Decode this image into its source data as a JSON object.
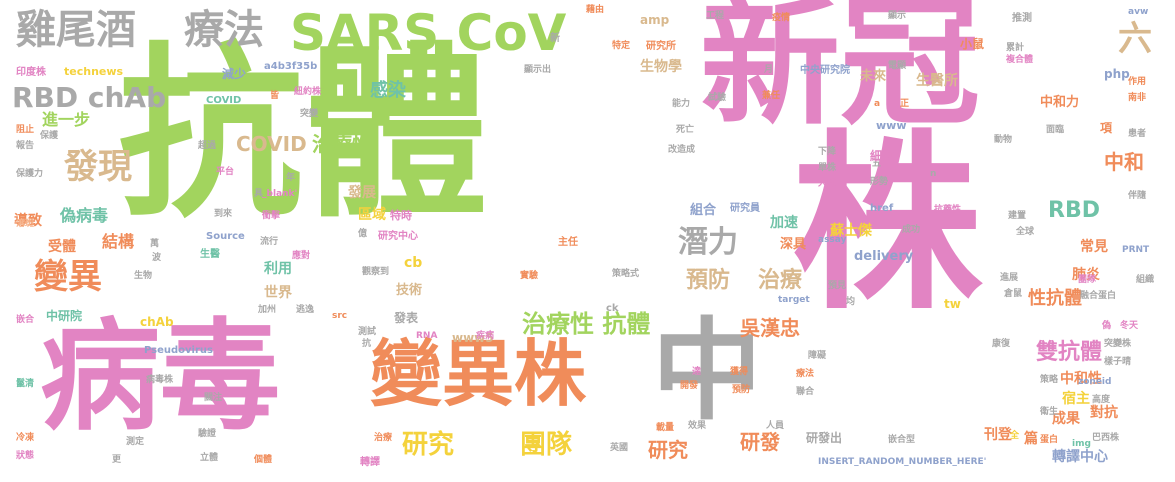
{
  "colors": {
    "green": "#a2d45e",
    "pink": "#e284c3",
    "orange": "#f08c5a",
    "gray": "#a9a9a9",
    "tan": "#d9b98e",
    "yellow": "#f4d23c",
    "teal": "#6fc2a7",
    "blue": "#8fa2cc",
    "lightorange": "#f6b48c"
  },
  "words": [
    {
      "text": "抗體",
      "size": 185,
      "color": "green"
    },
    {
      "text": "新冠",
      "size": 140,
      "color": "pink"
    },
    {
      "text": "株",
      "size": 190,
      "color": "pink"
    },
    {
      "text": "病毒",
      "size": 120,
      "color": "pink"
    },
    {
      "text": "中",
      "size": 110,
      "color": "gray"
    },
    {
      "text": "變異株",
      "size": 72,
      "color": "orange"
    },
    {
      "text": "SARS CoV",
      "size": 50,
      "color": "green"
    },
    {
      "text": "雞尾酒",
      "size": 40,
      "color": "gray"
    },
    {
      "text": "療法",
      "size": 40,
      "color": "gray"
    },
    {
      "text": "六",
      "size": 34,
      "color": "tan"
    },
    {
      "text": "RBD chAb",
      "size": 28,
      "color": "gray"
    },
    {
      "text": "發現",
      "size": 34,
      "color": "tan"
    },
    {
      "text": "變異",
      "size": 34,
      "color": "orange"
    },
    {
      "text": "潛力",
      "size": 30,
      "color": "gray"
    },
    {
      "text": "治療性 抗體",
      "size": 24,
      "color": "green"
    },
    {
      "text": "研究",
      "size": 26,
      "color": "yellow"
    },
    {
      "text": "團隊",
      "size": 26,
      "color": "yellow"
    },
    {
      "text": "吳漢忠",
      "size": 20,
      "color": "orange"
    },
    {
      "text": "雙抗體",
      "size": 22,
      "color": "pink"
    },
    {
      "text": "治療性",
      "size": 20,
      "color": "green"
    },
    {
      "text": "COVID",
      "size": 20,
      "color": "tan"
    },
    {
      "text": "預防",
      "size": 22,
      "color": "tan"
    },
    {
      "text": "治療",
      "size": 22,
      "color": "tan"
    },
    {
      "text": "RBD",
      "size": 22,
      "color": "teal"
    },
    {
      "text": "中和",
      "size": 20,
      "color": "orange"
    },
    {
      "text": "研究",
      "size": 20,
      "color": "orange"
    },
    {
      "text": "研發",
      "size": 20,
      "color": "orange"
    },
    {
      "text": "感染",
      "size": 18,
      "color": "teal"
    },
    {
      "text": "進一步",
      "size": 16,
      "color": "green"
    },
    {
      "text": "偽病毒",
      "size": 16,
      "color": "teal"
    },
    {
      "text": "結構",
      "size": 16,
      "color": "orange"
    },
    {
      "text": "受體",
      "size": 14,
      "color": "orange"
    },
    {
      "text": "導致",
      "size": 14,
      "color": "orange"
    },
    {
      "text": "發展",
      "size": 14,
      "color": "tan"
    },
    {
      "text": "區域",
      "size": 14,
      "color": "yellow"
    },
    {
      "text": "特時",
      "size": 11,
      "color": "pink"
    },
    {
      "text": "利用",
      "size": 14,
      "color": "teal"
    },
    {
      "text": "世界",
      "size": 14,
      "color": "tan"
    },
    {
      "text": "技術",
      "size": 13,
      "color": "tan"
    },
    {
      "text": "cb",
      "size": 14,
      "color": "yellow"
    },
    {
      "text": "加速",
      "size": 14,
      "color": "teal"
    },
    {
      "text": "組合",
      "size": 13,
      "color": "blue"
    },
    {
      "text": "研究員",
      "size": 10,
      "color": "blue"
    },
    {
      "text": "蘇士傑",
      "size": 14,
      "color": "yellow"
    },
    {
      "text": "深具",
      "size": 13,
      "color": "orange"
    },
    {
      "text": "delivery",
      "size": 13,
      "color": "blue"
    },
    {
      "text": "常見",
      "size": 14,
      "color": "orange"
    },
    {
      "text": "肺炎",
      "size": 14,
      "color": "orange"
    },
    {
      "text": "性抗體",
      "size": 18,
      "color": "orange"
    },
    {
      "text": "中和性",
      "size": 14,
      "color": "orange"
    },
    {
      "text": "宿主",
      "size": 14,
      "color": "yellow"
    },
    {
      "text": "成果",
      "size": 14,
      "color": "orange"
    },
    {
      "text": "對抗",
      "size": 14,
      "color": "orange"
    },
    {
      "text": "刊登",
      "size": 14,
      "color": "orange"
    },
    {
      "text": "篇",
      "size": 14,
      "color": "orange"
    },
    {
      "text": "轉譯中心",
      "size": 14,
      "color": "blue"
    },
    {
      "text": "研發出",
      "size": 12,
      "color": "gray"
    },
    {
      "text": "生物學",
      "size": 14,
      "color": "tan"
    },
    {
      "text": "未來",
      "size": 13,
      "color": "tan"
    },
    {
      "text": "生醫所",
      "size": 14,
      "color": "tan"
    },
    {
      "text": "中和力",
      "size": 13,
      "color": "orange"
    },
    {
      "text": "項",
      "size": 12,
      "color": "orange"
    },
    {
      "text": "小鼠",
      "size": 12,
      "color": "orange"
    },
    {
      "text": "減少",
      "size": 12,
      "color": "blue"
    },
    {
      "text": "amp",
      "size": 12,
      "color": "tan"
    },
    {
      "text": "technews",
      "size": 11,
      "color": "yellow"
    },
    {
      "text": "a4b3f35b",
      "size": 10,
      "color": "blue"
    },
    {
      "text": "php",
      "size": 12,
      "color": "blue"
    },
    {
      "text": "www",
      "size": 11,
      "color": "blue"
    },
    {
      "text": "www5",
      "size": 12,
      "color": "tan"
    },
    {
      "text": "tw",
      "size": 12,
      "color": "yellow"
    },
    {
      "text": "chAb",
      "size": 12,
      "color": "yellow"
    },
    {
      "text": "中研院",
      "size": 12,
      "color": "teal"
    },
    {
      "text": "Pseudovirus",
      "size": 10,
      "color": "blue"
    },
    {
      "text": "發表",
      "size": 12,
      "color": "gray"
    },
    {
      "text": "主任",
      "size": 10,
      "color": "orange"
    },
    {
      "text": "COVID",
      "size": 10,
      "color": "teal"
    },
    {
      "text": "Source",
      "size": 10,
      "color": "blue"
    },
    {
      "text": "生醫",
      "size": 10,
      "color": "teal"
    },
    {
      "text": "研究中心",
      "size": 10,
      "color": "pink"
    },
    {
      "text": "zoneid",
      "size": 9,
      "color": "blue"
    },
    {
      "text": "INSERT_RANDOM_NUMBER_HERE'",
      "size": 9,
      "color": "blue"
    },
    {
      "text": "_blank'",
      "size": 9,
      "color": "pink"
    },
    {
      "text": "href",
      "size": 10,
      "color": "blue"
    },
    {
      "text": "target",
      "size": 9,
      "color": "blue"
    },
    {
      "text": "assay",
      "size": 9,
      "color": "blue"
    },
    {
      "text": "PRNT",
      "size": 9,
      "color": "blue"
    },
    {
      "text": "RNA",
      "size": 9,
      "color": "pink"
    },
    {
      "text": "ck",
      "size": 10,
      "color": "gray"
    },
    {
      "text": "src",
      "size": 9,
      "color": "orange"
    },
    {
      "text": "img",
      "size": 9,
      "color": "teal"
    },
    {
      "text": "研究所",
      "size": 10,
      "color": "orange"
    },
    {
      "text": "中央研究院",
      "size": 10,
      "color": "blue"
    },
    {
      "text": "工程",
      "size": 9,
      "color": "gray"
    },
    {
      "text": "藉由",
      "size": 9,
      "color": "orange"
    },
    {
      "text": "特定",
      "size": 9,
      "color": "orange"
    },
    {
      "text": "新",
      "size": 10,
      "color": "gray"
    },
    {
      "text": "顯示出",
      "size": 9,
      "color": "gray"
    },
    {
      "text": "疫情",
      "size": 9,
      "color": "orange"
    },
    {
      "text": "推測",
      "size": 10,
      "color": "gray"
    },
    {
      "text": "累計",
      "size": 9,
      "color": "gray"
    },
    {
      "text": "複合體",
      "size": 9,
      "color": "pink"
    },
    {
      "text": "avw",
      "size": 9,
      "color": "blue"
    },
    {
      "text": "作用",
      "size": 9,
      "color": "orange"
    },
    {
      "text": "南非",
      "size": 9,
      "color": "orange"
    },
    {
      "text": "患者",
      "size": 9,
      "color": "gray"
    },
    {
      "text": "印度株",
      "size": 10,
      "color": "pink"
    },
    {
      "text": "阻止",
      "size": 9,
      "color": "orange"
    },
    {
      "text": "報告",
      "size": 9,
      "color": "gray"
    },
    {
      "text": "保護",
      "size": 9,
      "color": "gray"
    },
    {
      "text": "保護力",
      "size": 9,
      "color": "gray"
    },
    {
      "text": "溶斑",
      "size": 9,
      "color": "lightorange"
    },
    {
      "text": "嵌合",
      "size": 9,
      "color": "pink"
    },
    {
      "text": "鬣清",
      "size": 9,
      "color": "teal"
    },
    {
      "text": "冷凍",
      "size": 9,
      "color": "orange"
    },
    {
      "text": "狀態",
      "size": 9,
      "color": "pink"
    },
    {
      "text": "病毒株",
      "size": 9,
      "color": "gray"
    },
    {
      "text": "關注",
      "size": 9,
      "color": "gray"
    },
    {
      "text": "驗證",
      "size": 9,
      "color": "gray"
    },
    {
      "text": "立體",
      "size": 9,
      "color": "gray"
    },
    {
      "text": "個體",
      "size": 9,
      "color": "orange"
    },
    {
      "text": "治療",
      "size": 9,
      "color": "orange"
    },
    {
      "text": "轉譯",
      "size": 10,
      "color": "pink"
    },
    {
      "text": "英國",
      "size": 9,
      "color": "gray"
    },
    {
      "text": "載量",
      "size": 9,
      "color": "orange"
    },
    {
      "text": "效果",
      "size": 9,
      "color": "gray"
    },
    {
      "text": "人員",
      "size": 9,
      "color": "gray"
    },
    {
      "text": "嵌合型",
      "size": 9,
      "color": "gray"
    },
    {
      "text": "全",
      "size": 9,
      "color": "yellow"
    },
    {
      "text": "巴西株",
      "size": 9,
      "color": "gray"
    },
    {
      "text": "蛋白",
      "size": 9,
      "color": "orange"
    },
    {
      "text": "高度",
      "size": 9,
      "color": "gray"
    },
    {
      "text": "衛生",
      "size": 9,
      "color": "gray"
    },
    {
      "text": "策略",
      "size": 9,
      "color": "gray"
    },
    {
      "text": "樣子晴",
      "size": 9,
      "color": "gray"
    },
    {
      "text": "康復",
      "size": 9,
      "color": "gray"
    },
    {
      "text": "突變株",
      "size": 9,
      "color": "gray"
    },
    {
      "text": "冬天",
      "size": 9,
      "color": "pink"
    },
    {
      "text": "偽",
      "size": 9,
      "color": "pink"
    },
    {
      "text": "融合蛋白",
      "size": 9,
      "color": "gray"
    },
    {
      "text": "組織",
      "size": 9,
      "color": "gray"
    },
    {
      "text": "團隊",
      "size": 9,
      "color": "pink"
    },
    {
      "text": "倉鼠",
      "size": 9,
      "color": "gray"
    },
    {
      "text": "進展",
      "size": 9,
      "color": "gray"
    },
    {
      "text": "建置",
      "size": 9,
      "color": "gray"
    },
    {
      "text": "全球",
      "size": 9,
      "color": "gray"
    },
    {
      "text": "伴隨",
      "size": 9,
      "color": "gray"
    },
    {
      "text": "成功",
      "size": 9,
      "color": "gray"
    },
    {
      "text": "抗藥性",
      "size": 9,
      "color": "pink"
    },
    {
      "text": "形勢",
      "size": 9,
      "color": "gray"
    },
    {
      "text": "人類",
      "size": 9,
      "color": "pink"
    },
    {
      "text": "單株",
      "size": 9,
      "color": "gray"
    },
    {
      "text": "下降",
      "size": 9,
      "color": "gray"
    },
    {
      "text": "五",
      "size": 9,
      "color": "gray"
    },
    {
      "text": "動物",
      "size": 9,
      "color": "gray"
    },
    {
      "text": "面臨",
      "size": 9,
      "color": "gray"
    },
    {
      "text": "細胞",
      "size": 12,
      "color": "pink"
    },
    {
      "text": "死亡",
      "size": 9,
      "color": "gray"
    },
    {
      "text": "改造成",
      "size": 9,
      "color": "gray"
    },
    {
      "text": "兼任",
      "size": 9,
      "color": "orange"
    },
    {
      "text": "試驗",
      "size": 9,
      "color": "gray"
    },
    {
      "text": "能力",
      "size": 9,
      "color": "gray"
    },
    {
      "text": "月",
      "size": 9,
      "color": "gray"
    },
    {
      "text": "電顯",
      "size": 9,
      "color": "gray"
    },
    {
      "text": "顯示",
      "size": 9,
      "color": "gray"
    },
    {
      "text": "正",
      "size": 9,
      "color": "orange"
    },
    {
      "text": "a",
      "size": 9,
      "color": "orange"
    },
    {
      "text": "n",
      "size": 9,
      "color": "gray"
    },
    {
      "text": "紐約株",
      "size": 9,
      "color": "pink"
    },
    {
      "text": "突變",
      "size": 9,
      "color": "gray"
    },
    {
      "text": "超過",
      "size": 9,
      "color": "gray"
    },
    {
      "text": "平台",
      "size": 9,
      "color": "pink"
    },
    {
      "text": "衝擊",
      "size": 9,
      "color": "pink"
    },
    {
      "text": "到來",
      "size": 9,
      "color": "gray"
    },
    {
      "text": "流行",
      "size": 9,
      "color": "gray"
    },
    {
      "text": "應對",
      "size": 9,
      "color": "pink"
    },
    {
      "text": "加州",
      "size": 9,
      "color": "gray"
    },
    {
      "text": "逃逸",
      "size": 9,
      "color": "gray"
    },
    {
      "text": "億",
      "size": 9,
      "color": "gray"
    },
    {
      "text": "觀察到",
      "size": 9,
      "color": "gray"
    },
    {
      "text": "疾病",
      "size": 9,
      "color": "pink"
    },
    {
      "text": "測試",
      "size": 9,
      "color": "gray"
    },
    {
      "text": "策略式",
      "size": 9,
      "color": "gray"
    },
    {
      "text": "預見",
      "size": 9,
      "color": "gray"
    },
    {
      "text": "實驗",
      "size": 9,
      "color": "orange"
    },
    {
      "text": "均",
      "size": 9,
      "color": "gray"
    },
    {
      "text": "開發",
      "size": 9,
      "color": "orange"
    },
    {
      "text": "獲得",
      "size": 9,
      "color": "orange"
    },
    {
      "text": "預防",
      "size": 9,
      "color": "orange"
    },
    {
      "text": "療法",
      "size": 9,
      "color": "orange"
    },
    {
      "text": "聯合",
      "size": 9,
      "color": "gray"
    },
    {
      "text": "障礙",
      "size": 9,
      "color": "gray"
    },
    {
      "text": "達",
      "size": 9,
      "color": "pink"
    },
    {
      "text": "萬",
      "size": 9,
      "color": "gray"
    },
    {
      "text": "波",
      "size": 9,
      "color": "gray"
    },
    {
      "text": "生物",
      "size": 9,
      "color": "gray"
    },
    {
      "text": "具",
      "size": 9,
      "color": "gray"
    },
    {
      "text": "年",
      "size": 9,
      "color": "gray"
    },
    {
      "text": "皆",
      "size": 9,
      "color": "orange"
    },
    {
      "text": "抗",
      "size": 9,
      "color": "gray"
    },
    {
      "text": "更",
      "size": 9,
      "color": "gray"
    },
    {
      "text": "測定",
      "size": 9,
      "color": "gray"
    }
  ]
}
